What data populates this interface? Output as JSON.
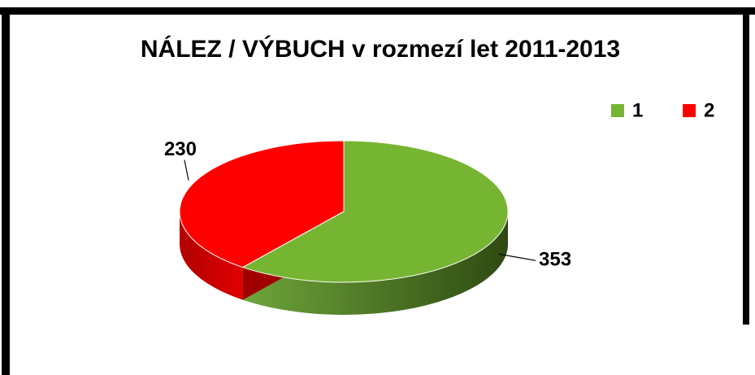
{
  "chart_data": {
    "type": "pie",
    "title": "NÁLEZ / VÝBUCH v rozmezí let 2011-2013",
    "categories": [
      "1",
      "2"
    ],
    "values": [
      353,
      230
    ],
    "colors": [
      "#76b531",
      "#ff0000"
    ],
    "legend": "top-right"
  }
}
